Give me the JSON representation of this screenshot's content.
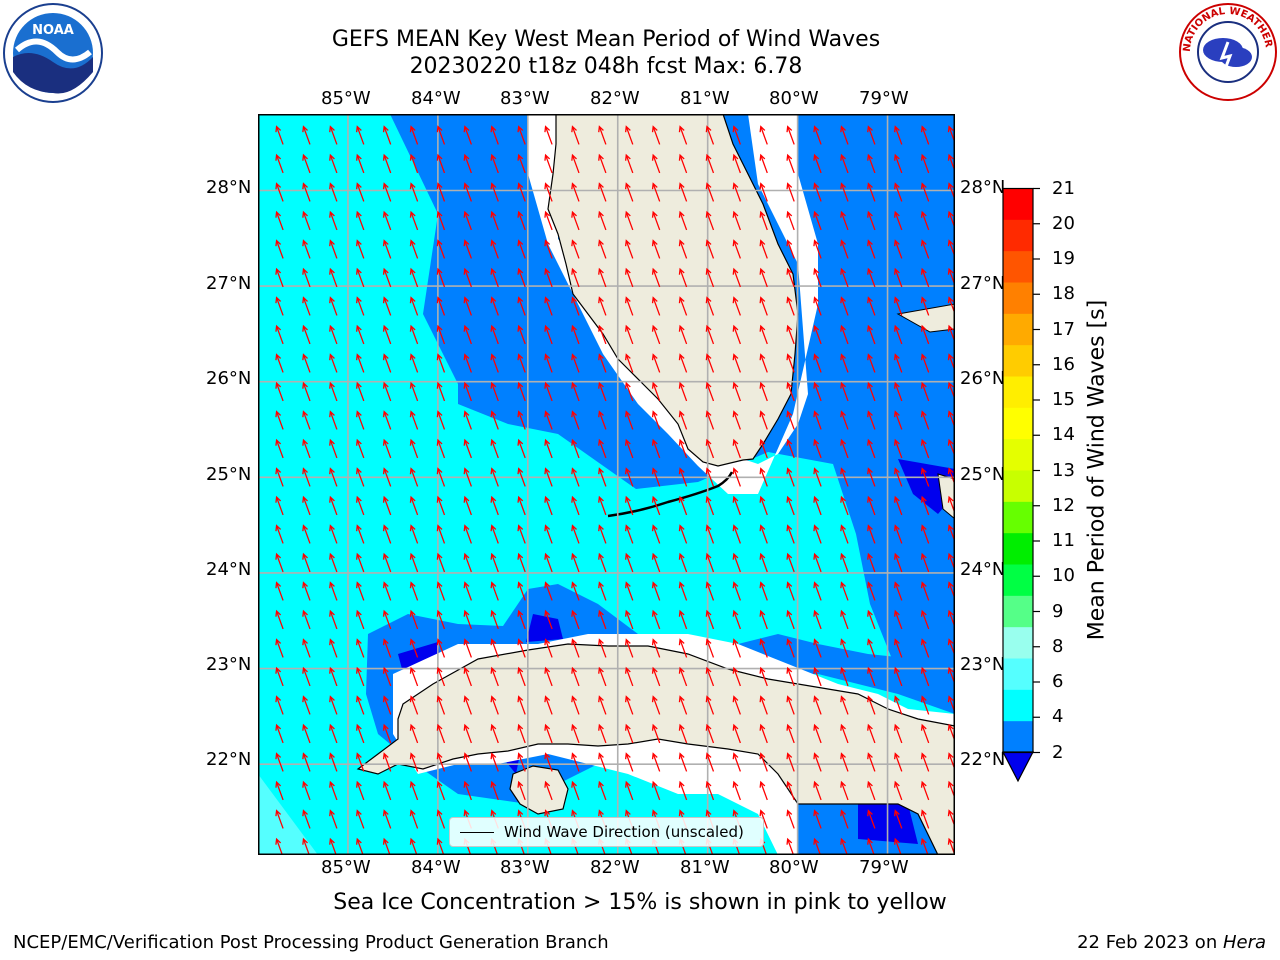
{
  "title": {
    "line1": "GEFS MEAN Key West Mean Period of Wind Waves",
    "line2": "20230220 t18z 048h fcst   Max: 6.78"
  },
  "map": {
    "lon_labels": [
      "85°W",
      "84°W",
      "83°W",
      "82°W",
      "81°W",
      "80°W",
      "79°W"
    ],
    "lat_labels": [
      "28°N",
      "27°N",
      "26°N",
      "25°N",
      "24°N",
      "23°N",
      "22°N"
    ],
    "lon_range": [
      -86.0,
      -78.25
    ],
    "lat_range": [
      21.05,
      28.8
    ],
    "colors": {
      "land": "#eeecdd",
      "shallow_band": "#ffffff",
      "period_2_4": "#0080ff",
      "period_4_6": "#00ffff",
      "period_below_2": "#0000ee",
      "period_6_8": "#55ffff",
      "arrow": "#ff0000",
      "grid": "#b0b0b0",
      "coast": "#000000"
    },
    "arrow_direction": "north-northwest"
  },
  "colorbar": {
    "label": "Mean Period of Wind Waves [s]",
    "ticks": [
      "21",
      "20",
      "19",
      "18",
      "17",
      "16",
      "15",
      "14",
      "13",
      "12",
      "11",
      "10",
      "9",
      "8",
      "6",
      "4",
      "2"
    ],
    "colors": [
      "#ff0000",
      "#ff2a00",
      "#ff5500",
      "#ff8000",
      "#ffaa00",
      "#ffcc00",
      "#ffee00",
      "#ffff00",
      "#e4ff00",
      "#c8ff00",
      "#66ff00",
      "#00ee00",
      "#00ff44",
      "#55ff88",
      "#99ffee",
      "#55ffff",
      "#00ffff",
      "#0080ff"
    ],
    "extend_color": "#0000ee"
  },
  "legend": {
    "label": "Wind Wave Direction (unscaled)"
  },
  "caption": "Sea Ice Concentration > 15% is shown in pink to yellow",
  "footer": {
    "left": "NCEP/EMC/Verification Post Processing Product Generation Branch",
    "right_date": "22 Feb 2023 on ",
    "right_machine": "Hera"
  },
  "logos": {
    "left": "NOAA",
    "right": "NATIONAL WEATHER SERVICE"
  }
}
